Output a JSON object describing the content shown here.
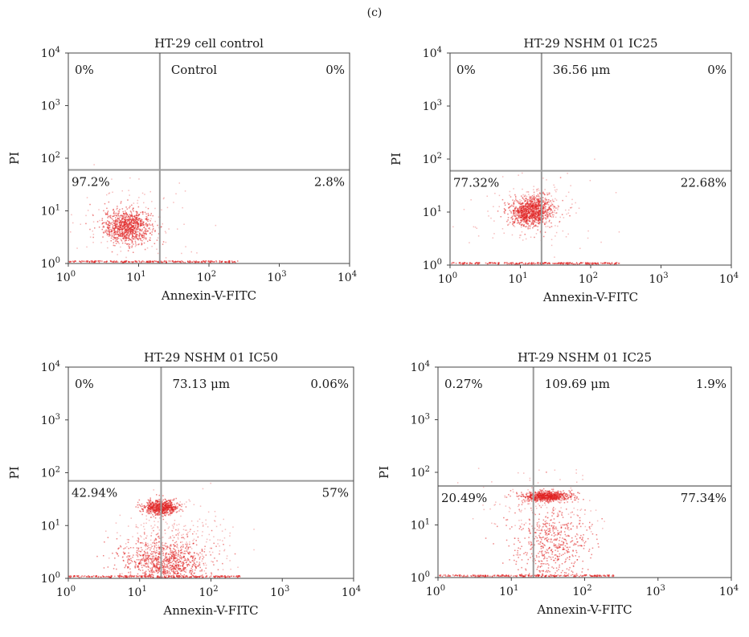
{
  "figure_label": "(c)",
  "colors": {
    "dots": "#e02020",
    "quadrant_line": "#9a9a9a",
    "frame": "#444444"
  },
  "chart_data": [
    {
      "type": "scatter",
      "title": "HT-29 cell control",
      "xlabel": "Annexin-V-FITC",
      "ylabel": "PI",
      "xscale": "log",
      "yscale": "log",
      "xlim": [
        1,
        10000
      ],
      "ylim": [
        1,
        10000
      ],
      "x_ticks": [
        "10^0",
        "10^1",
        "10^2",
        "10^3",
        "10^4"
      ],
      "y_ticks": [
        "10^0",
        "10^1",
        "10^2",
        "10^3",
        "10^4"
      ],
      "gate": {
        "x": 20,
        "y": 60
      },
      "annotation": "Control",
      "quadrants": {
        "upper_left": "0%",
        "upper_right": "0%",
        "lower_left": "97.2%",
        "lower_right": "2.8%"
      },
      "populations": [
        {
          "x": 7,
          "y": 5,
          "sx": 0.17,
          "sy": 0.16,
          "n": 900
        },
        {
          "x": 8,
          "y": 5,
          "sx": 0.45,
          "sy": 0.45,
          "n": 140
        }
      ],
      "baseline_dots": true
    },
    {
      "type": "scatter",
      "title": "HT-29 NSHM 01 IC25",
      "xlabel": "Annexin-V-FITC",
      "ylabel": "PI",
      "xscale": "log",
      "yscale": "log",
      "xlim": [
        1,
        10000
      ],
      "ylim": [
        1,
        10000
      ],
      "x_ticks": [
        "10^0",
        "10^1",
        "10^2",
        "10^3",
        "10^4"
      ],
      "y_ticks": [
        "10^0",
        "10^1",
        "10^2",
        "10^3",
        "10^4"
      ],
      "gate": {
        "x": 20,
        "y": 60
      },
      "annotation": "36.56 μm",
      "quadrants": {
        "upper_left": "0%",
        "upper_right": "0%",
        "lower_left": "77.32%",
        "lower_right": "22.68%"
      },
      "populations": [
        {
          "x": 14,
          "y": 10,
          "sx": 0.15,
          "sy": 0.13,
          "n": 900
        },
        {
          "x": 18,
          "y": 14,
          "sx": 0.12,
          "sy": 0.14,
          "n": 250
        },
        {
          "x": 14,
          "y": 9,
          "sx": 0.45,
          "sy": 0.4,
          "n": 140
        }
      ],
      "baseline_dots": true
    },
    {
      "type": "scatter",
      "title": "HT-29 NSHM 01 IC50",
      "xlabel": "Annexin-V-FITC",
      "ylabel": "PI",
      "xscale": "log",
      "yscale": "log",
      "xlim": [
        1,
        10000
      ],
      "ylim": [
        1,
        10000
      ],
      "x_ticks": [
        "10^0",
        "10^1",
        "10^2",
        "10^3",
        "10^4"
      ],
      "y_ticks": [
        "10^0",
        "10^1",
        "10^2",
        "10^3",
        "10^4"
      ],
      "gate": {
        "x": 20,
        "y": 70
      },
      "annotation": "73.13 μm",
      "quadrants": {
        "upper_left": "0%",
        "upper_right": "0.06%",
        "lower_left": "42.94%",
        "lower_right": "57%"
      },
      "populations": [
        {
          "x": 20,
          "y": 22,
          "sx": 0.12,
          "sy": 0.07,
          "n": 650
        },
        {
          "x": 22,
          "y": 2,
          "sx": 0.3,
          "sy": 0.22,
          "n": 900
        },
        {
          "x": 30,
          "y": 5,
          "sx": 0.4,
          "sy": 0.35,
          "n": 300
        }
      ],
      "baseline_dots": true
    },
    {
      "type": "scatter",
      "title": "HT-29 NSHM 01 IC25",
      "xlabel": "Annexin-V-FITC",
      "ylabel": "PI",
      "xscale": "log",
      "yscale": "log",
      "xlim": [
        1,
        10000
      ],
      "ylim": [
        1,
        10000
      ],
      "x_ticks": [
        "10^0",
        "10^1",
        "10^2",
        "10^3",
        "10^4"
      ],
      "y_ticks": [
        "10^0",
        "10^1",
        "10^2",
        "10^3",
        "10^4"
      ],
      "gate": {
        "x": 20,
        "y": 55
      },
      "annotation": "109.69 μm",
      "quadrants": {
        "upper_left": "0.27%",
        "upper_right": "1.9%",
        "lower_left": "20.49%",
        "lower_right": "77.34%"
      },
      "populations": [
        {
          "x": 30,
          "y": 35,
          "sx": 0.17,
          "sy": 0.05,
          "n": 700
        },
        {
          "x": 35,
          "y": 4,
          "sx": 0.28,
          "sy": 0.38,
          "n": 550
        },
        {
          "x": 25,
          "y": 20,
          "sx": 0.4,
          "sy": 0.35,
          "n": 150
        }
      ],
      "baseline_dots": true
    }
  ]
}
